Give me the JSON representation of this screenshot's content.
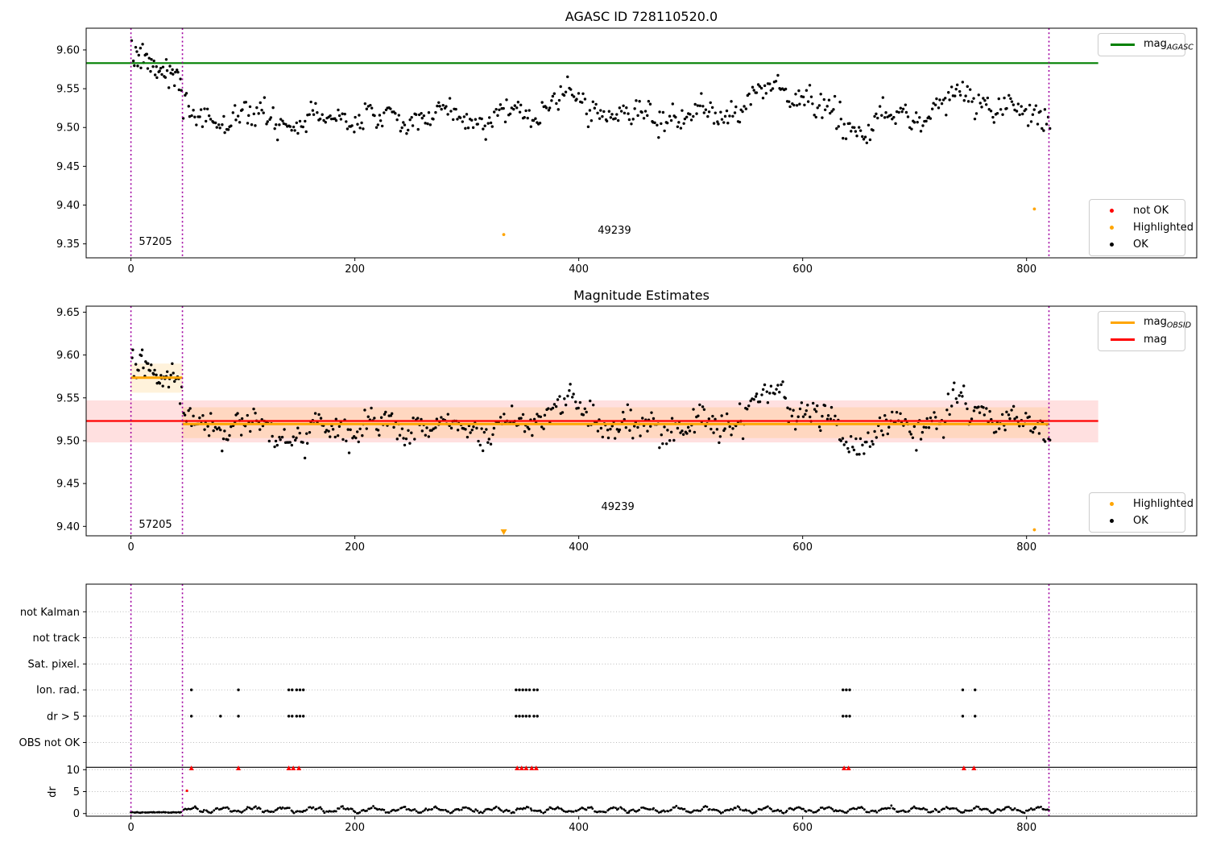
{
  "colors": {
    "ok": "#000000",
    "not_ok": "#ff0000",
    "highlighted": "#ffa500",
    "mag_agasc": "#008000",
    "mag": "#ff0000",
    "mag_obsid": "#ffa500",
    "mag_band": "rgba(255,0,0,0.12)",
    "obsid_band": "rgba(255,165,0,0.14)",
    "obsid_boundary": "#a000a0",
    "gridline": "#bbbbbb",
    "separator": "#000000"
  },
  "chart_data": [
    {
      "type": "scatter",
      "title": "AGASC ID 728110520.0",
      "xlim": [
        -40,
        952
      ],
      "ylim": [
        9.332,
        9.628
      ],
      "xticks": [
        0,
        200,
        400,
        600,
        800
      ],
      "yticks": [
        "9.35",
        "9.40",
        "9.45",
        "9.50",
        "9.55",
        "9.60"
      ],
      "vlines": [
        0,
        46,
        820
      ],
      "agasc_line": {
        "main": "mag",
        "sub": "AGASC",
        "y": 9.583,
        "x0": -40,
        "x1": 864,
        "color": "#008000"
      },
      "point_legend": [
        {
          "label": "not OK",
          "color": "#ff0000"
        },
        {
          "label": "Highlighted",
          "color": "#ffa500"
        },
        {
          "label": "OK",
          "color": "#000000"
        }
      ],
      "annotations": [
        {
          "text": "57205",
          "x": 7,
          "y": 9.352
        },
        {
          "text": "49239",
          "x": 417,
          "y": 9.366
        }
      ],
      "highlighted": [
        [
          333,
          9.362
        ],
        [
          807,
          9.395
        ]
      ],
      "scatter": {
        "seed": 7,
        "segments": [
          {
            "n": 44,
            "x0": 1,
            "x1": 45,
            "base": 9.584,
            "slope": -0.00055,
            "waves": [
              {
                "a": 0.006,
                "p": 34,
                "ph": 1.2
              }
            ],
            "bumps": [
              {
                "x": 11,
                "a": 0.01,
                "w": 8
              }
            ],
            "noise": 0.0095,
            "clip": [
              9.492,
              9.612
            ]
          },
          {
            "n": 545,
            "x0": 47,
            "x1": 821,
            "base": 9.5135,
            "slope": 0,
            "waves": [
              {
                "a": 0.0085,
                "p": 57,
                "ph": 2.1
              },
              {
                "a": 0.005,
                "p": 23,
                "ph": 0.7
              }
            ],
            "bumps": [
              {
                "x": 390,
                "a": 0.026,
                "w": 21
              },
              {
                "x": 576,
                "a": 0.036,
                "w": 26
              },
              {
                "x": 748,
                "a": 0.026,
                "w": 20
              },
              {
                "x": 646,
                "a": -0.02,
                "w": 12
              },
              {
                "x": 150,
                "a": -0.007,
                "w": 15
              }
            ],
            "noise": 0.0082,
            "clip": [
              9.462,
              9.602
            ]
          }
        ]
      }
    },
    {
      "type": "scatter",
      "title": "Magnitude Estimates",
      "xlim": [
        -40,
        952
      ],
      "ylim": [
        9.389,
        9.657
      ],
      "xticks": [
        0,
        200,
        400,
        600,
        800
      ],
      "yticks": [
        "9.40",
        "9.45",
        "9.50",
        "9.55",
        "9.60",
        "9.65"
      ],
      "vlines": [
        0,
        46,
        820
      ],
      "mag_line": {
        "label": "mag",
        "y": 9.523,
        "x0": -40,
        "x1": 864,
        "band": [
          9.498,
          9.547
        ],
        "color": "#ff0000"
      },
      "obsid_line": {
        "main": "mag",
        "sub": "OBSID",
        "color": "#ffa500",
        "segments": [
          {
            "x0": 0,
            "x1": 46,
            "y": 9.5735,
            "band": [
              9.556,
              9.59
            ]
          },
          {
            "x0": 46,
            "x1": 820,
            "y": 9.5195,
            "band": [
              9.503,
              9.539
            ]
          }
        ]
      },
      "point_legend": [
        {
          "label": "Highlighted",
          "color": "#ffa500"
        },
        {
          "label": "OK",
          "color": "#000000"
        }
      ],
      "annotations": [
        {
          "text": "57205",
          "x": 7,
          "y": 9.401
        },
        {
          "text": "49239",
          "x": 420,
          "y": 9.422
        }
      ],
      "highlighted": [
        [
          807,
          9.396
        ]
      ],
      "highlighted_clipped": [
        333
      ],
      "scatter": {
        "seed": 13,
        "segments": [
          {
            "n": 44,
            "x0": 1,
            "x1": 45,
            "base": 9.5765,
            "slope": -0.0003,
            "waves": [
              {
                "a": 0.005,
                "p": 30,
                "ph": 0.4
              }
            ],
            "bumps": [
              {
                "x": 12,
                "a": 0.012,
                "w": 9
              }
            ],
            "noise": 0.009,
            "clip": [
              9.528,
              9.606
            ]
          },
          {
            "n": 545,
            "x0": 47,
            "x1": 821,
            "base": 9.516,
            "slope": 0,
            "waves": [
              {
                "a": 0.0085,
                "p": 57,
                "ph": 2.1
              },
              {
                "a": 0.005,
                "p": 23,
                "ph": 0.7
              }
            ],
            "bumps": [
              {
                "x": 390,
                "a": 0.024,
                "w": 21
              },
              {
                "x": 576,
                "a": 0.034,
                "w": 26
              },
              {
                "x": 748,
                "a": 0.024,
                "w": 20
              },
              {
                "x": 646,
                "a": -0.02,
                "w": 12
              },
              {
                "x": 150,
                "a": -0.007,
                "w": 15
              }
            ],
            "noise": 0.008,
            "clip": [
              9.463,
              9.585
            ]
          }
        ]
      }
    },
    {
      "type": "scatter",
      "title": "",
      "xlim": [
        -40,
        952
      ],
      "ylim": [
        -0.6,
        52.3
      ],
      "xticks": [
        0,
        200,
        400,
        600,
        800
      ],
      "vlines": [
        0,
        46,
        820
      ],
      "ylabel": "dr",
      "rows": [
        {
          "label": "not Kalman",
          "y": 46
        },
        {
          "label": "not track",
          "y": 40.1
        },
        {
          "label": "Sat. pixel.",
          "y": 34.1
        },
        {
          "label": "Ion. rad.",
          "y": 28.2
        },
        {
          "label": "dr > 5",
          "y": 22.2
        },
        {
          "label": "OBS not OK",
          "y": 16.2
        }
      ],
      "dr_ticks": [
        {
          "label": "10",
          "v": 10
        },
        {
          "label": "5",
          "v": 5
        },
        {
          "label": "0",
          "v": 0
        }
      ],
      "separator_y": 10.55,
      "flags": [
        {
          "row": "Ion. rad.",
          "x": [
            54,
            96,
            141,
            144,
            148,
            151,
            154,
            344,
            347,
            350,
            353,
            356,
            360,
            363,
            636,
            639,
            642,
            743,
            754
          ]
        },
        {
          "row": "dr > 5",
          "x": [
            54,
            80,
            96,
            141,
            144,
            148,
            151,
            154,
            344,
            347,
            350,
            353,
            356,
            360,
            363,
            636,
            639,
            642,
            743,
            754
          ]
        }
      ],
      "dr_clipped": [
        54,
        96,
        141,
        145,
        150,
        345,
        349,
        353,
        358,
        362,
        637,
        641,
        744,
        753
      ],
      "dr_red_points": [
        [
          50,
          5.2
        ]
      ],
      "dr_series": {
        "seed": 21,
        "segments": [
          {
            "n": 34,
            "x0": 0,
            "x1": 45,
            "base": 0.28,
            "slope": 0,
            "waves": [],
            "bumps": [],
            "noise": 0.045,
            "clip": [
              0.12,
              0.5
            ]
          },
          {
            "n": 540,
            "x0": 47,
            "x1": 820,
            "base": 0.85,
            "slope": 0,
            "waves": [
              {
                "a": 0.45,
                "p": 27,
                "ph": 1.3
              },
              {
                "a": 0.22,
                "p": 9.3,
                "ph": 0.4
              }
            ],
            "bumps": [],
            "noise": 0.12,
            "clip": [
              0.07,
              2.3
            ]
          }
        ]
      }
    }
  ]
}
